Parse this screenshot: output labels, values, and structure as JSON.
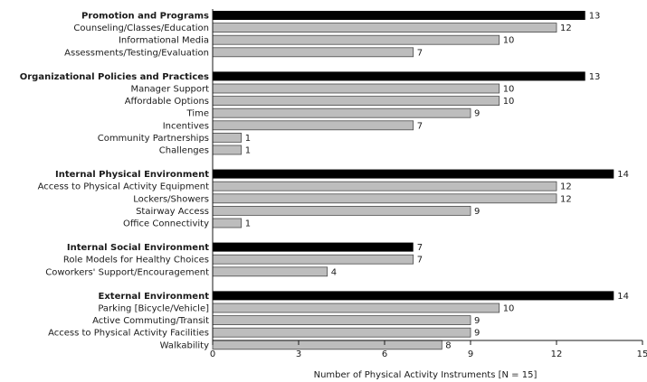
{
  "chart_data": {
    "type": "bar",
    "orientation": "horizontal",
    "xlabel": "Number of Physical Activity Instruments [N = 15]",
    "xlim": [
      0,
      15
    ],
    "xticks": [
      0,
      3,
      6,
      9,
      12,
      15
    ],
    "grid": false,
    "colors": {
      "header_bar": "#000000",
      "item_bar": "#bdbdbd",
      "bar_edge": "#4a4a4a"
    },
    "groups": [
      {
        "label": "Promotion and Programs",
        "value": 13,
        "items": [
          {
            "label": "Counseling/Classes/Education",
            "value": 12
          },
          {
            "label": "Informational Media",
            "value": 10
          },
          {
            "label": "Assessments/Testing/Evaluation",
            "value": 7
          }
        ]
      },
      {
        "label": "Organizational Policies and Practices",
        "value": 13,
        "items": [
          {
            "label": "Manager Support",
            "value": 10
          },
          {
            "label": "Affordable Options",
            "value": 10
          },
          {
            "label": "Time",
            "value": 9
          },
          {
            "label": "Incentives",
            "value": 7
          },
          {
            "label": "Community Partnerships",
            "value": 1
          },
          {
            "label": "Challenges",
            "value": 1
          }
        ]
      },
      {
        "label": "Internal Physical Environment",
        "value": 14,
        "items": [
          {
            "label": "Access to Physical Activity Equipment",
            "value": 12
          },
          {
            "label": "Lockers/Showers",
            "value": 12
          },
          {
            "label": "Stairway Access",
            "value": 9
          },
          {
            "label": "Office Connectivity",
            "value": 1
          }
        ]
      },
      {
        "label": "Internal Social Environment",
        "value": 7,
        "items": [
          {
            "label": "Role Models for Healthy Choices",
            "value": 7
          },
          {
            "label": "Coworkers' Support/Encouragement",
            "value": 4
          }
        ]
      },
      {
        "label": "External Environment",
        "value": 14,
        "items": [
          {
            "label": "Parking [Bicycle/Vehicle]",
            "value": 10
          },
          {
            "label": "Active Commuting/Transit",
            "value": 9
          },
          {
            "label": "Access to Physical Activity Facilities",
            "value": 9
          },
          {
            "label": "Walkability",
            "value": 8
          }
        ]
      }
    ]
  }
}
